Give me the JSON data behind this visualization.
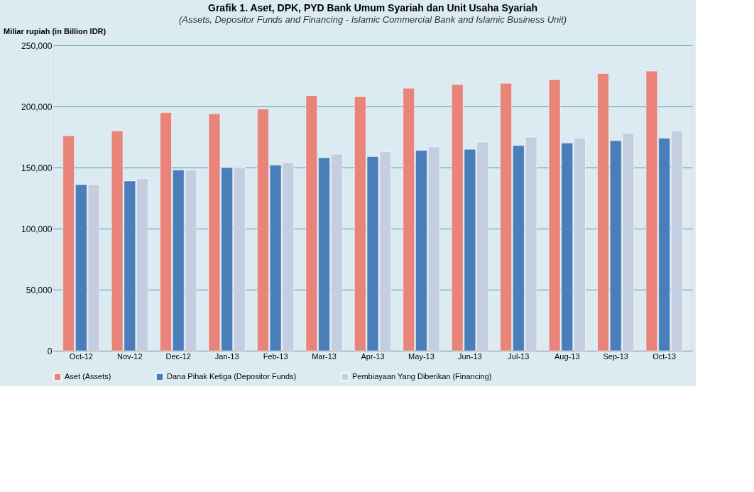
{
  "chart_data": {
    "type": "bar",
    "title": "Grafik 1. Aset, DPK, PYD Bank Umum Syariah dan Unit Usaha Syariah",
    "subtitle": "(Assets, Depositor Funds and Financing - Islamic Commercial Bank and Islamic Business Unit)",
    "ylabel": "Miliar rupiah (in Billion IDR)",
    "categories": [
      "Oct-12",
      "Nov-12",
      "Dec-12",
      "Jan-13",
      "Feb-13",
      "Mar-13",
      "Apr-13",
      "May-13",
      "Jun-13",
      "Jul-13",
      "Aug-13",
      "Sep-13",
      "Oct-13"
    ],
    "series": [
      {
        "name": "Aset (Assets)",
        "color": "#e8847a",
        "values": [
          176000,
          180000,
          195000,
          194000,
          198000,
          209000,
          208000,
          215000,
          218000,
          219000,
          222000,
          227000,
          229000
        ]
      },
      {
        "name": "Dana Pihak Ketiga (Depositor Funds)",
        "color": "#4a7ebb",
        "values": [
          136000,
          139000,
          148000,
          150000,
          152000,
          158000,
          159000,
          164000,
          165000,
          168000,
          170000,
          172000,
          174000
        ]
      },
      {
        "name": "Pembiayaan Yang Diberikan (Financing)",
        "color": "#c5cde0",
        "values": [
          136000,
          141000,
          148000,
          150000,
          154000,
          161000,
          163000,
          167000,
          171000,
          175000,
          174000,
          178000,
          180000
        ]
      }
    ],
    "ylim": [
      0,
      250000
    ],
    "yticks": [
      {
        "value": 0,
        "label": "0"
      },
      {
        "value": 50000,
        "label": "50,000"
      },
      {
        "value": 100000,
        "label": "100,000"
      },
      {
        "value": 150000,
        "label": "150,000"
      },
      {
        "value": 200000,
        "label": "200,000"
      },
      {
        "value": 250000,
        "label": "250,000"
      }
    ],
    "grid": "y",
    "legend": "bottom"
  }
}
